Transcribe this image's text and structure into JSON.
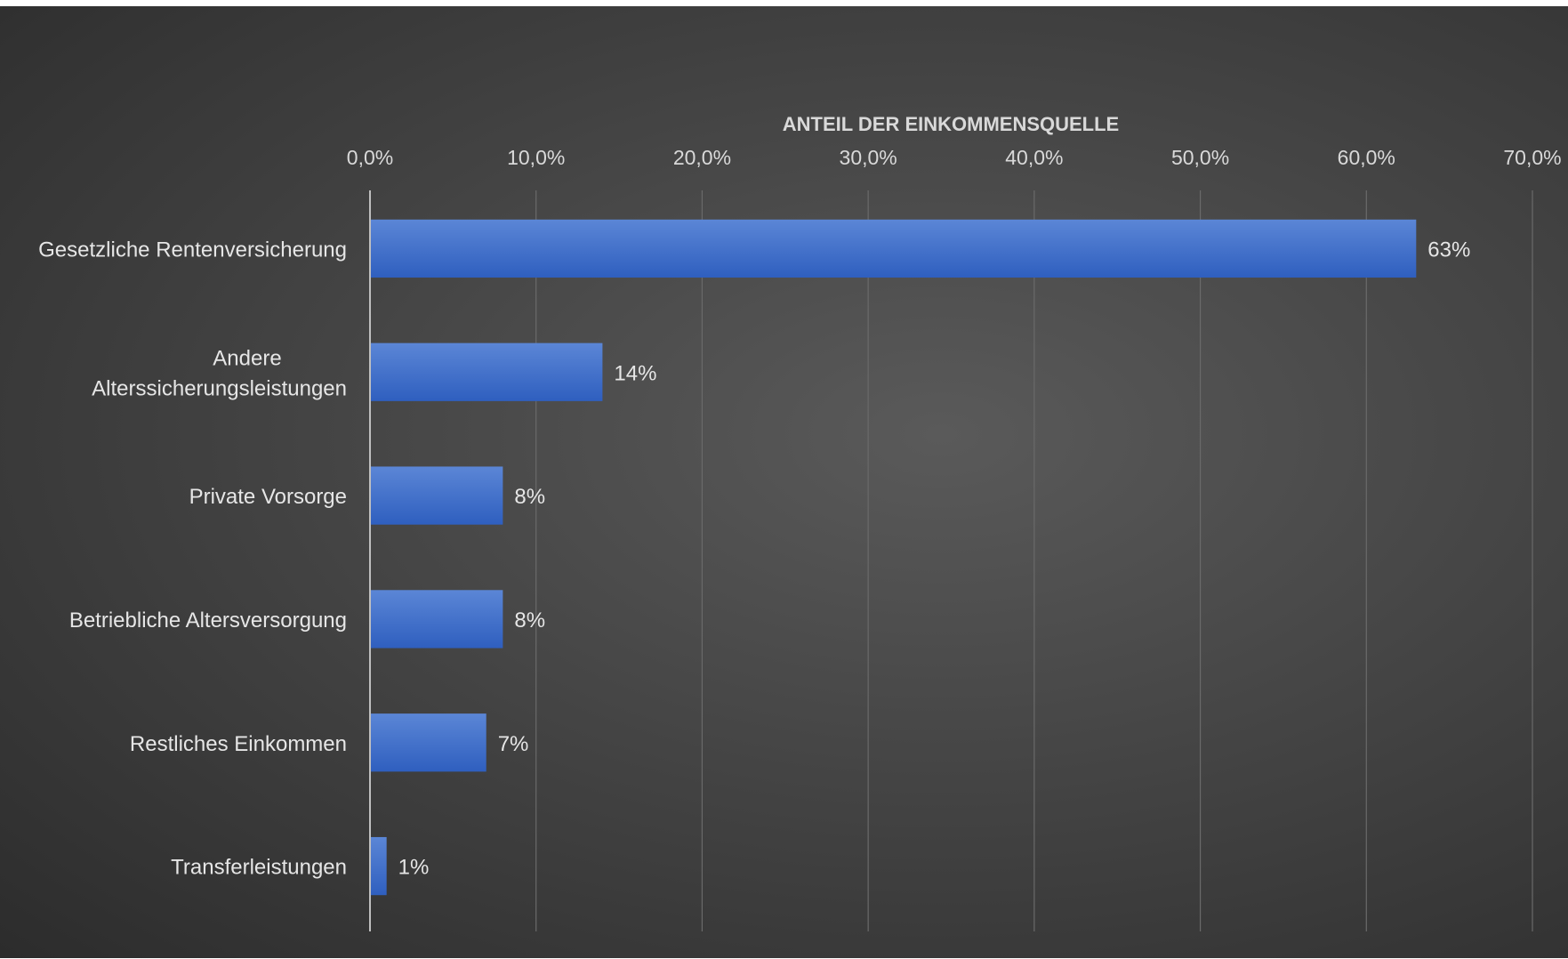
{
  "chart_data": {
    "type": "bar",
    "orientation": "horizontal",
    "title": "",
    "xlabel": "ANTEIL DER EINKOMMENSQUELLE",
    "ylabel": "",
    "xlim": [
      0,
      0.7
    ],
    "x_tick_values": [
      0,
      0.1,
      0.2,
      0.3,
      0.4,
      0.5,
      0.6,
      0.7
    ],
    "x_tick_labels": [
      "0,0%",
      "10,0%",
      "20,0%",
      "30,0%",
      "40,0%",
      "50,0%",
      "60,0%",
      "70,0%"
    ],
    "x_axis_position": "top",
    "grid": true,
    "legend": "none",
    "categories": [
      [
        "Gesetzliche Rentenversicherung"
      ],
      [
        "Andere",
        "Alterssicherungsleistungen"
      ],
      [
        "Private Vorsorge"
      ],
      [
        "Betriebliche Altersversorgung"
      ],
      [
        "Restliches Einkommen"
      ],
      [
        "Transferleistungen"
      ]
    ],
    "values": [
      0.63,
      0.14,
      0.08,
      0.08,
      0.07,
      0.01
    ],
    "data_labels": [
      "63%",
      "14%",
      "8%",
      "8%",
      "7%",
      "1%"
    ],
    "bar_color": "#4472c4",
    "background_color": "#404040"
  }
}
